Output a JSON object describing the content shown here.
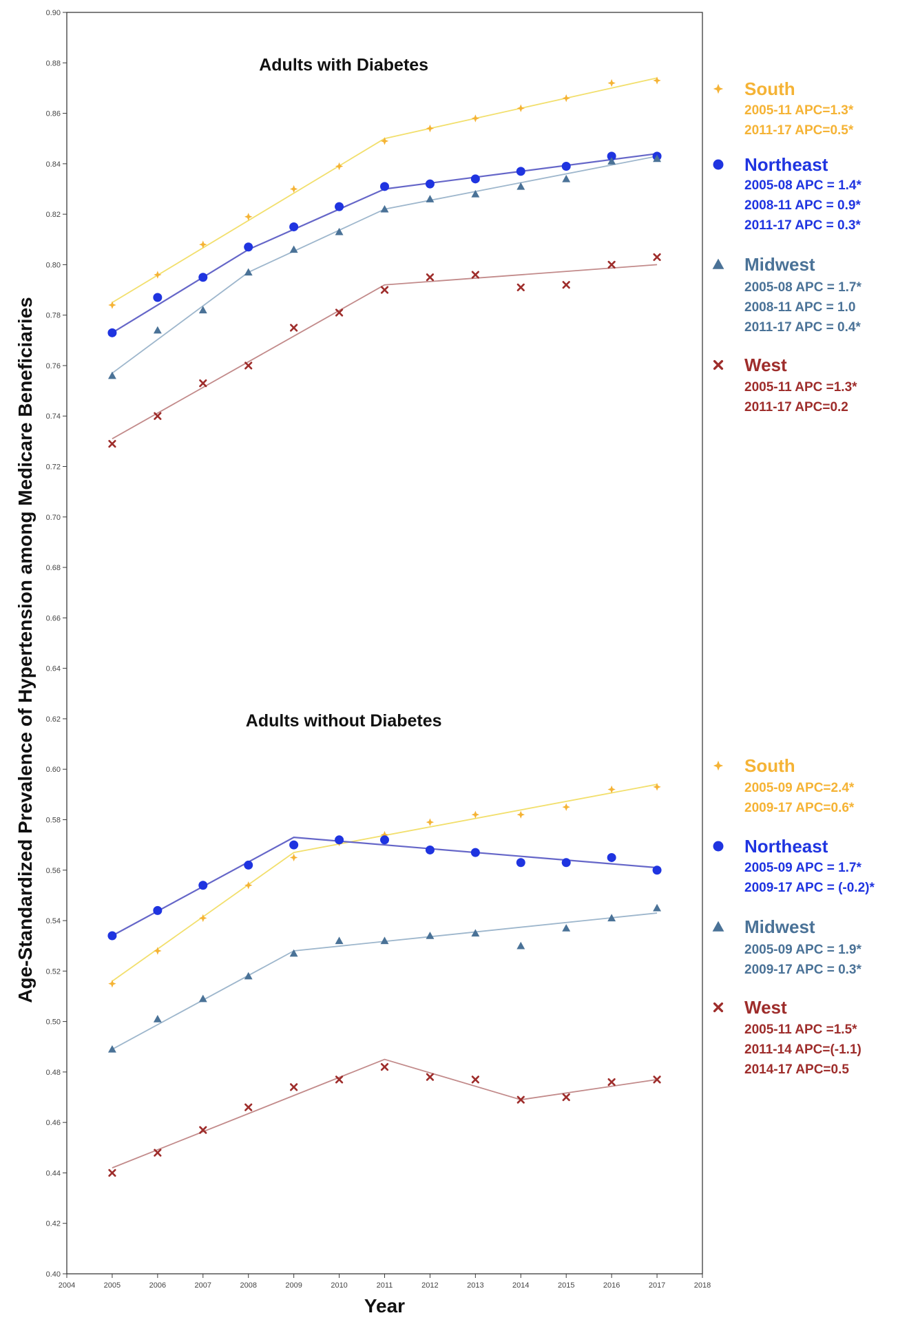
{
  "chart_data": {
    "type": "line",
    "ylabel": "Age-Standardized Prevalence of Hypertension among Medicare Beneficiaries",
    "xlabel": "Year",
    "xlim": [
      2004,
      2018
    ],
    "ylim": [
      0.4,
      0.9
    ],
    "x_ticks": [
      "2004",
      "2005",
      "2006",
      "2007",
      "2008",
      "2009",
      "2010",
      "2011",
      "2012",
      "2013",
      "2014",
      "2015",
      "2016",
      "2017",
      "2018"
    ],
    "y_ticks": [
      "0.40",
      "0.42",
      "0.44",
      "0.46",
      "0.48",
      "0.50",
      "0.52",
      "0.54",
      "0.56",
      "0.58",
      "0.60",
      "0.62",
      "0.64",
      "0.66",
      "0.68",
      "0.70",
      "0.72",
      "0.74",
      "0.76",
      "0.78",
      "0.80",
      "0.82",
      "0.84",
      "0.86",
      "0.88",
      "0.90"
    ],
    "x": [
      2005,
      2006,
      2007,
      2008,
      2009,
      2010,
      2011,
      2012,
      2013,
      2014,
      2015,
      2016,
      2017
    ],
    "panels": [
      {
        "title": "Adults with Diabetes",
        "series": [
          {
            "name": "South",
            "marker": "plus",
            "color": "#F5B335",
            "line_color": "#F2DF6C",
            "values": [
              0.784,
              0.796,
              0.808,
              0.819,
              0.83,
              0.839,
              0.849,
              0.854,
              0.858,
              0.862,
              0.866,
              0.872,
              0.873
            ],
            "fit": [
              [
                2005,
                0.785
              ],
              [
                2011,
                0.85
              ],
              [
                2017,
                0.874
              ]
            ],
            "apc": [
              "2005-11 APC=1.3*",
              "2011-17 APC=0.5*"
            ]
          },
          {
            "name": "Northeast",
            "marker": "circle",
            "color": "#1F34E0",
            "line_color": "#6566C8",
            "values": [
              0.773,
              0.787,
              0.795,
              0.807,
              0.815,
              0.823,
              0.831,
              0.832,
              0.834,
              0.837,
              0.839,
              0.843,
              0.843
            ],
            "fit": [
              [
                2005,
                0.773
              ],
              [
                2008,
                0.806
              ],
              [
                2011,
                0.83
              ],
              [
                2017,
                0.844
              ]
            ],
            "apc": [
              "2005-08 APC = 1.4*",
              "2008-11 APC = 0.9*",
              "2011-17 APC = 0.3*"
            ]
          },
          {
            "name": "Midwest",
            "marker": "triangle",
            "color": "#4A7297",
            "line_color": "#9DB6CC",
            "values": [
              0.756,
              0.774,
              0.782,
              0.797,
              0.806,
              0.813,
              0.822,
              0.826,
              0.828,
              0.831,
              0.834,
              0.841,
              0.842
            ],
            "fit": [
              [
                2005,
                0.757
              ],
              [
                2008,
                0.797
              ],
              [
                2011,
                0.822
              ],
              [
                2017,
                0.843
              ]
            ],
            "apc": [
              "2005-08 APC = 1.7*",
              "2008-11 APC = 1.0",
              "2011-17 APC = 0.4*"
            ]
          },
          {
            "name": "West",
            "marker": "x",
            "color": "#9E2D2B",
            "line_color": "#C28A8A",
            "values": [
              0.729,
              0.74,
              0.753,
              0.76,
              0.775,
              0.781,
              0.79,
              0.795,
              0.796,
              0.791,
              0.792,
              0.8,
              0.803
            ],
            "fit": [
              [
                2005,
                0.731
              ],
              [
                2011,
                0.792
              ],
              [
                2017,
                0.8
              ]
            ],
            "apc": [
              "2005-11 APC =1.3*",
              "2011-17 APC=0.2"
            ]
          }
        ]
      },
      {
        "title": "Adults without Diabetes",
        "series": [
          {
            "name": "South",
            "marker": "plus",
            "color": "#F5B335",
            "line_color": "#F2DF6C",
            "values": [
              0.515,
              0.528,
              0.541,
              0.554,
              0.565,
              0.571,
              0.574,
              0.579,
              0.582,
              0.582,
              0.585,
              0.592,
              0.593
            ],
            "fit": [
              [
                2005,
                0.516
              ],
              [
                2009,
                0.567
              ],
              [
                2017,
                0.594
              ]
            ],
            "apc": [
              "2005-09 APC=2.4*",
              "2009-17 APC=0.6*"
            ]
          },
          {
            "name": "Northeast",
            "marker": "circle",
            "color": "#1F34E0",
            "line_color": "#6566C8",
            "values": [
              0.534,
              0.544,
              0.554,
              0.562,
              0.57,
              0.572,
              0.572,
              0.568,
              0.567,
              0.563,
              0.563,
              0.565,
              0.56
            ],
            "fit": [
              [
                2005,
                0.534
              ],
              [
                2009,
                0.573
              ],
              [
                2017,
                0.561
              ]
            ],
            "apc": [
              "2005-09 APC = 1.7*",
              "2009-17 APC = (-0.2)*"
            ]
          },
          {
            "name": "Midwest",
            "marker": "triangle",
            "color": "#4A7297",
            "line_color": "#9DB6CC",
            "values": [
              0.489,
              0.501,
              0.509,
              0.518,
              0.527,
              0.532,
              0.532,
              0.534,
              0.535,
              0.53,
              0.537,
              0.541,
              0.545
            ],
            "fit": [
              [
                2005,
                0.489
              ],
              [
                2009,
                0.528
              ],
              [
                2017,
                0.543
              ]
            ],
            "apc": [
              "2005-09 APC = 1.9*",
              "2009-17 APC = 0.3*"
            ]
          },
          {
            "name": "West",
            "marker": "x",
            "color": "#9E2D2B",
            "line_color": "#C28A8A",
            "values": [
              0.44,
              0.448,
              0.457,
              0.466,
              0.474,
              0.477,
              0.482,
              0.478,
              0.477,
              0.469,
              0.47,
              0.476,
              0.477
            ],
            "fit": [
              [
                2005,
                0.442
              ],
              [
                2011,
                0.485
              ],
              [
                2014,
                0.469
              ],
              [
                2017,
                0.477
              ]
            ],
            "apc": [
              "2005-11 APC =1.5*",
              "2011-14 APC=(-1.1)",
              "2014-17 APC=0.5"
            ]
          }
        ]
      }
    ]
  }
}
